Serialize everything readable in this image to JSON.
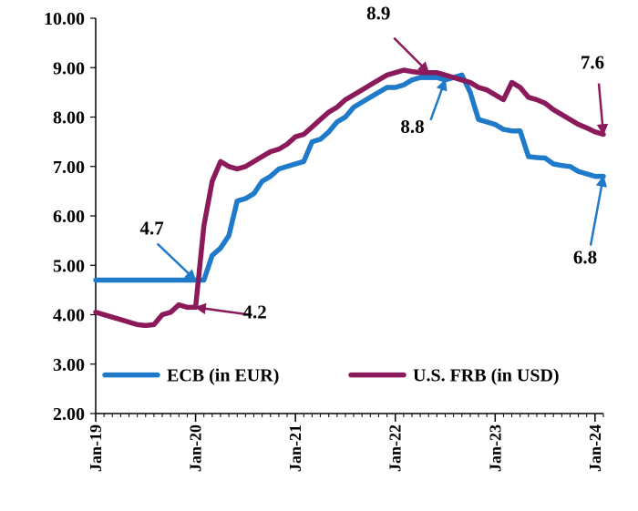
{
  "chart_data": {
    "type": "line",
    "title": "",
    "xlabel": "",
    "ylabel": "",
    "ylim": [
      2.0,
      10.0
    ],
    "y_ticks": [
      "2.00",
      "3.00",
      "4.00",
      "5.00",
      "6.00",
      "7.00",
      "8.00",
      "9.00",
      "10.00"
    ],
    "x_ticks": [
      {
        "label": "Jan-19",
        "x": 0
      },
      {
        "label": "Jan-20",
        "x": 12
      },
      {
        "label": "Jan-21",
        "x": 24
      },
      {
        "label": "Jan-22",
        "x": 36
      },
      {
        "label": "Jan-23",
        "x": 48
      },
      {
        "label": "Jan-24",
        "x": 60
      }
    ],
    "legend": "inside-bottom",
    "series": [
      {
        "name": "ECB (in EUR)",
        "color": "#1f7ac9",
        "x": [
          0,
          1,
          2,
          3,
          4,
          5,
          6,
          7,
          8,
          9,
          10,
          11,
          12,
          13,
          14,
          15,
          16,
          17,
          18,
          19,
          20,
          21,
          22,
          23,
          24,
          25,
          26,
          27,
          28,
          29,
          30,
          31,
          32,
          33,
          34,
          35,
          36,
          37,
          38,
          39,
          40,
          41,
          42,
          43,
          44,
          45,
          46,
          47,
          48,
          49,
          50,
          51,
          52,
          53,
          54,
          55,
          56,
          57,
          58,
          59,
          60,
          61
        ],
        "y": [
          4.7,
          4.7,
          4.7,
          4.7,
          4.7,
          4.7,
          4.7,
          4.7,
          4.7,
          4.7,
          4.7,
          4.7,
          4.7,
          4.7,
          5.2,
          5.35,
          5.6,
          6.3,
          6.35,
          6.45,
          6.7,
          6.8,
          6.95,
          7.0,
          7.05,
          7.1,
          7.5,
          7.55,
          7.7,
          7.9,
          8.0,
          8.2,
          8.3,
          8.4,
          8.5,
          8.6,
          8.6,
          8.65,
          8.75,
          8.8,
          8.8,
          8.8,
          8.75,
          8.8,
          8.85,
          8.5,
          7.95,
          7.9,
          7.85,
          7.75,
          7.72,
          7.72,
          7.2,
          7.18,
          7.17,
          7.05,
          7.02,
          7.0,
          6.9,
          6.85,
          6.8,
          6.8
        ]
      },
      {
        "name": "U.S. FRB (in USD)",
        "color": "#8b1a5a",
        "x": [
          0,
          1,
          2,
          3,
          4,
          5,
          6,
          7,
          8,
          9,
          10,
          11,
          12,
          13,
          14,
          15,
          16,
          17,
          18,
          19,
          20,
          21,
          22,
          23,
          24,
          25,
          26,
          27,
          28,
          29,
          30,
          31,
          32,
          33,
          34,
          35,
          36,
          37,
          38,
          39,
          40,
          41,
          42,
          43,
          44,
          45,
          46,
          47,
          48,
          49,
          50,
          51,
          52,
          53,
          54,
          55,
          56,
          57,
          58,
          59,
          60,
          61
        ],
        "y": [
          4.05,
          4.0,
          3.95,
          3.9,
          3.85,
          3.8,
          3.78,
          3.8,
          4.0,
          4.05,
          4.2,
          4.15,
          4.15,
          5.8,
          6.7,
          7.1,
          7.0,
          6.95,
          7.0,
          7.1,
          7.2,
          7.3,
          7.35,
          7.45,
          7.6,
          7.65,
          7.8,
          7.95,
          8.1,
          8.2,
          8.35,
          8.45,
          8.55,
          8.65,
          8.75,
          8.85,
          8.9,
          8.95,
          8.92,
          8.9,
          8.9,
          8.9,
          8.85,
          8.8,
          8.75,
          8.7,
          8.6,
          8.55,
          8.45,
          8.35,
          8.7,
          8.6,
          8.4,
          8.35,
          8.28,
          8.15,
          8.05,
          7.95,
          7.85,
          7.78,
          7.7,
          7.65
        ]
      }
    ],
    "annotations": [
      {
        "text": "4.7",
        "series": 0,
        "x": 12
      },
      {
        "text": "4.2",
        "series": 1,
        "x": 12
      },
      {
        "text": "8.9",
        "series": 1,
        "x": 40
      },
      {
        "text": "8.8",
        "series": 0,
        "x": 42
      },
      {
        "text": "7.6",
        "series": 1,
        "x": 61
      },
      {
        "text": "6.8",
        "series": 0,
        "x": 61
      }
    ]
  }
}
